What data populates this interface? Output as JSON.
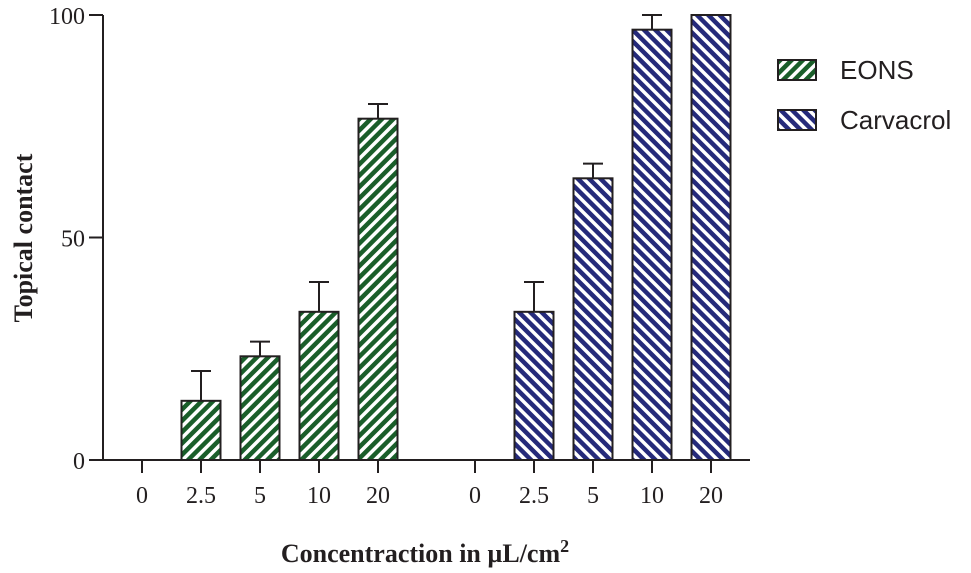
{
  "chart_data": {
    "type": "bar",
    "title": "",
    "ylabel": "Topical contact",
    "xlabel": "Concentraction in µL/cm",
    "xlabel_superscript": "2",
    "ylim": [
      0,
      100
    ],
    "yticks": [
      "0",
      "50",
      "100"
    ],
    "ytick_values": [
      0,
      50,
      100
    ],
    "categories": [
      "0",
      "2.5",
      "5",
      "10",
      "20"
    ],
    "legend_position": "right",
    "grid": false,
    "series": [
      {
        "name": "EONS",
        "color": "#1a5e2a",
        "hatch": "forward-diagonal",
        "values": [
          0,
          13.3,
          23.3,
          33.3,
          76.7
        ],
        "errors": [
          0,
          6.7,
          3.3,
          6.7,
          3.3
        ]
      },
      {
        "name": "Carvacrol",
        "color": "#252a7a",
        "hatch": "back-diagonal",
        "values": [
          0,
          33.3,
          63.3,
          96.7,
          100
        ],
        "errors": [
          0,
          6.7,
          3.3,
          3.3,
          0
        ]
      }
    ]
  }
}
